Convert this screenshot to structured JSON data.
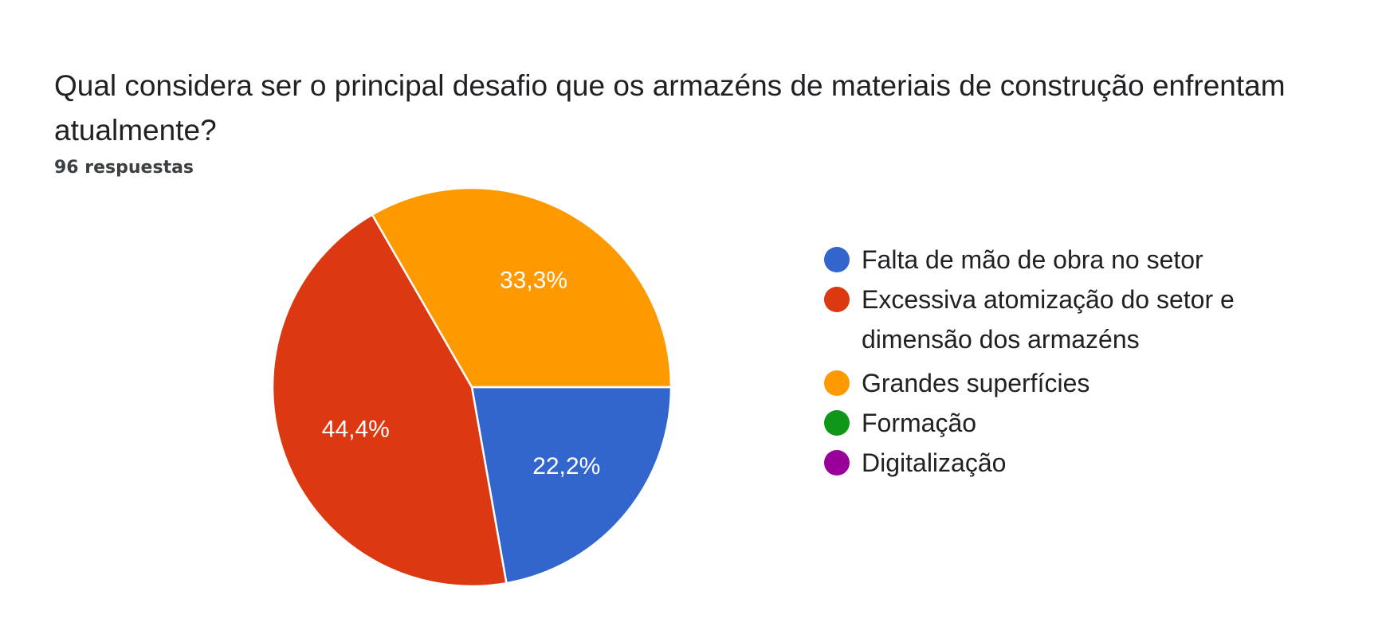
{
  "question": {
    "title": "Qual considera ser o principal desafio que os armazéns de materiais de construção enfrentam atualmente?",
    "response_count": "96 respuestas"
  },
  "chart_data": {
    "type": "pie",
    "title": "Qual considera ser o principal desafio que os armazéns de materiais de construção enfrentam atualmente?",
    "legend_position": "right",
    "slices": [
      {
        "label": "Falta de mão de obra no setor",
        "lines": [
          "Falta de mão de obra no setor"
        ],
        "value": 22.2,
        "display": "22,2%",
        "color": "#3366cc"
      },
      {
        "label": "Excessiva atomização do setor e dimensão dos armazéns",
        "lines": [
          "Excessiva atomização do setor e",
          "dimensão dos armazéns"
        ],
        "value": 44.4,
        "display": "44,4%",
        "color": "#dc3912"
      },
      {
        "label": "Grandes superfícies",
        "lines": [
          "Grandes superfícies"
        ],
        "value": 33.3,
        "display": "33,3%",
        "color": "#ff9900"
      },
      {
        "label": "Formação",
        "lines": [
          "Formação"
        ],
        "value": 0,
        "display": "0%",
        "color": "#109618"
      },
      {
        "label": "Digitalização",
        "lines": [
          "Digitalização"
        ],
        "value": 0,
        "display": "0%",
        "color": "#990099"
      }
    ]
  }
}
